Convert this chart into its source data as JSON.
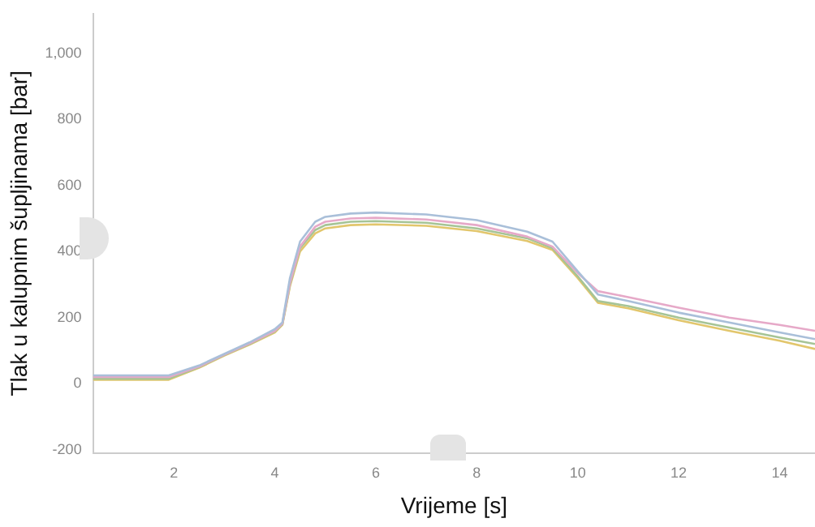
{
  "chart_data": {
    "type": "line",
    "xlabel": "Vrijeme [s]",
    "ylabel": "Tlak u kalupnim šupljinama [bar]",
    "x": [
      0.4,
      1.9,
      2.5,
      3,
      3.5,
      4,
      4.15,
      4.3,
      4.5,
      4.8,
      5,
      5.5,
      6,
      7,
      8,
      9,
      9.5,
      10,
      10.4,
      11,
      12,
      13,
      14,
      14.7
    ],
    "series": [
      {
        "color": "#a9bfd9",
        "values": [
          25,
          25,
          55,
          90,
          125,
          165,
          185,
          320,
          430,
          490,
          505,
          515,
          518,
          512,
          495,
          460,
          430,
          340,
          270,
          250,
          215,
          185,
          155,
          135
        ]
      },
      {
        "color": "#e6a9c8",
        "values": [
          20,
          20,
          52,
          88,
          122,
          160,
          182,
          305,
          415,
          475,
          490,
          500,
          502,
          497,
          480,
          445,
          415,
          335,
          280,
          262,
          230,
          200,
          178,
          160
        ]
      },
      {
        "color": "#a6c496",
        "values": [
          15,
          15,
          50,
          87,
          120,
          158,
          180,
          300,
          410,
          465,
          480,
          490,
          492,
          487,
          470,
          440,
          410,
          325,
          250,
          235,
          200,
          170,
          140,
          120
        ]
      },
      {
        "color": "#e2c66c",
        "values": [
          12,
          12,
          48,
          85,
          118,
          155,
          178,
          295,
          400,
          455,
          470,
          480,
          482,
          478,
          462,
          432,
          405,
          320,
          245,
          228,
          192,
          160,
          130,
          105
        ]
      }
    ],
    "xlim": [
      0.4,
      14.7
    ],
    "xticks": [
      2,
      4,
      6,
      8,
      10,
      12,
      14
    ],
    "ylim": [
      -210,
      1120
    ],
    "yticks": [
      -200,
      0,
      200,
      400,
      600,
      800,
      {
        "value": 1000,
        "label": "1,000"
      }
    ],
    "grid": false,
    "legend": false,
    "marker": "none",
    "line_style": "solid"
  }
}
